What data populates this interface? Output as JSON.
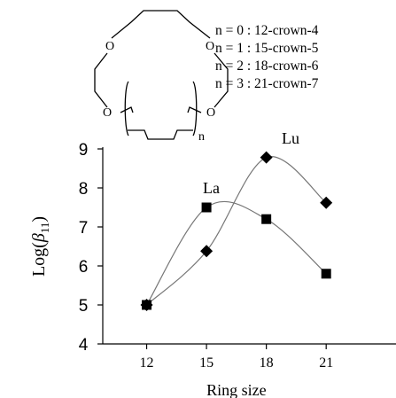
{
  "structure": {
    "atom_label": "O",
    "subscript": "n"
  },
  "crown_list": [
    "n = 0 : 12-crown-4",
    "n = 1 : 15-crown-5",
    "n = 2 : 18-crown-6",
    "n = 3 : 21-crown-7"
  ],
  "chart_data": {
    "type": "scatter",
    "title": "",
    "xlabel": "Ring size",
    "ylabel": "Log(β11)",
    "ylabel_parts": {
      "prefix": "Log(",
      "symbol": "β",
      "sub": "11",
      "suffix": ")"
    },
    "x_ticks": [
      "12",
      "15",
      "18",
      "21"
    ],
    "y_ticks": [
      "4",
      "5",
      "6",
      "7",
      "8",
      "9"
    ],
    "xlim": [
      9.8,
      24.5
    ],
    "ylim": [
      4,
      9
    ],
    "grid": false,
    "legend": "none",
    "series": [
      {
        "name": "La",
        "marker": "square",
        "color": "#000000",
        "x": [
          12,
          15,
          18,
          21
        ],
        "y": [
          5.0,
          7.5,
          7.2,
          5.8
        ]
      },
      {
        "name": "Lu",
        "marker": "diamond",
        "color": "#000000",
        "x": [
          12,
          15,
          18,
          21
        ],
        "y": [
          5.0,
          6.38,
          8.78,
          7.62
        ]
      }
    ],
    "fit_curves": "smooth spline through points",
    "curve_color": "#777777"
  }
}
